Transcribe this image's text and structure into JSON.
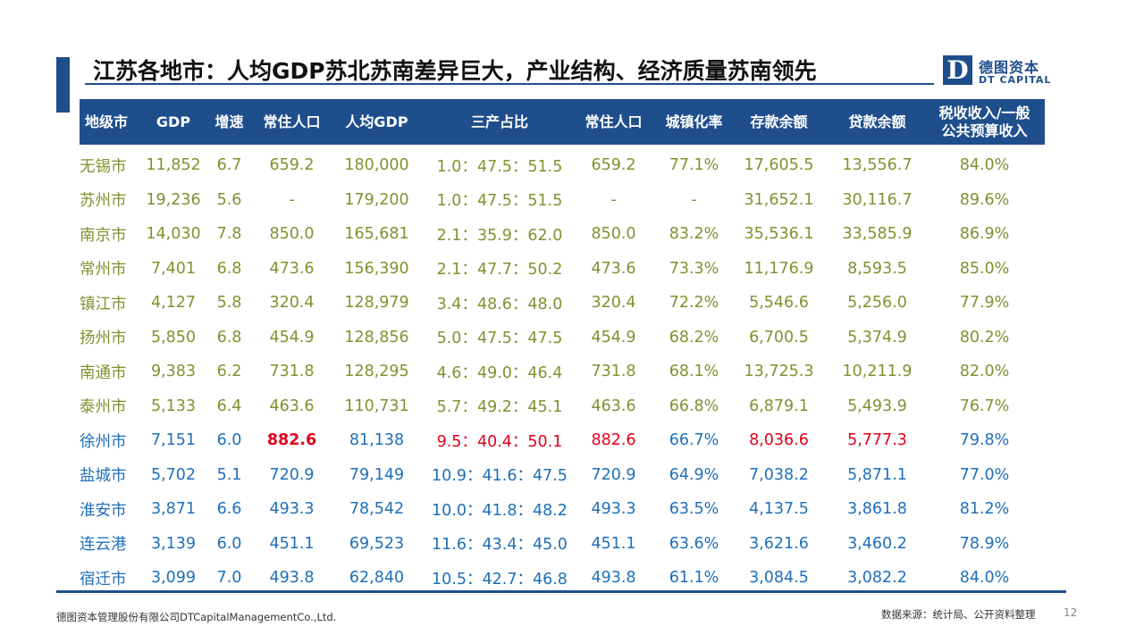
{
  "title": "江苏各地市：人均GDP苏北苏南差异巨大，产业结构、经济质量苏南领先",
  "logo": {
    "mark": "D",
    "cn": "德图资本",
    "en": "DT CAPITAL"
  },
  "headers": [
    "地级市",
    "GDP",
    "增速",
    "常住人口",
    "人均GDP",
    "三产占比",
    "常住人口",
    "城镇化率",
    "存款余额",
    "贷款余额",
    "税收收入/一般\n公共预算收入"
  ],
  "rows": [
    {
      "name": "无锡市",
      "gdp": "11,852",
      "growth": "6.7",
      "pop": "659.2",
      "gdp_pc": "180,000",
      "ratio": "1.0：47.5：51.5",
      "pop2": "659.2",
      "urban": "77.1%",
      "deposit": "17,605.5",
      "loan": "13,556.7",
      "tax": "84.0%",
      "group": "south"
    },
    {
      "name": "苏州市",
      "gdp": "19,236",
      "growth": "5.6",
      "pop": "-",
      "gdp_pc": "179,200",
      "ratio": "1.0：47.5：51.5",
      "pop2": "-",
      "urban": "-",
      "deposit": "31,652.1",
      "loan": "30,116.7",
      "tax": "89.6%",
      "group": "south"
    },
    {
      "name": "南京市",
      "gdp": "14,030",
      "growth": "7.8",
      "pop": "850.0",
      "gdp_pc": "165,681",
      "ratio": "2.1：35.9：62.0",
      "pop2": "850.0",
      "urban": "83.2%",
      "deposit": "35,536.1",
      "loan": "33,585.9",
      "tax": "86.9%",
      "group": "south"
    },
    {
      "name": "常州市",
      "gdp": "7,401",
      "growth": "6.8",
      "pop": "473.6",
      "gdp_pc": "156,390",
      "ratio": "2.1：47.7：50.2",
      "pop2": "473.6",
      "urban": "73.3%",
      "deposit": "11,176.9",
      "loan": "8,593.5",
      "tax": "85.0%",
      "group": "south"
    },
    {
      "name": "镇江市",
      "gdp": "4,127",
      "growth": "5.8",
      "pop": "320.4",
      "gdp_pc": "128,979",
      "ratio": "3.4：48.6：48.0",
      "pop2": "320.4",
      "urban": "72.2%",
      "deposit": "5,546.6",
      "loan": "5,256.0",
      "tax": "77.9%",
      "group": "south"
    },
    {
      "name": "扬州市",
      "gdp": "5,850",
      "growth": "6.8",
      "pop": "454.9",
      "gdp_pc": "128,856",
      "ratio": "5.0：47.5：47.5",
      "pop2": "454.9",
      "urban": "68.2%",
      "deposit": "6,700.5",
      "loan": "5,374.9",
      "tax": "80.2%",
      "group": "south"
    },
    {
      "name": "南通市",
      "gdp": "9,383",
      "growth": "6.2",
      "pop": "731.8",
      "gdp_pc": "128,295",
      "ratio": "4.6：49.0：46.4",
      "pop2": "731.8",
      "urban": "68.1%",
      "deposit": "13,725.3",
      "loan": "10,211.9",
      "tax": "82.0%",
      "group": "south"
    },
    {
      "name": "泰州市",
      "gdp": "5,133",
      "growth": "6.4",
      "pop": "463.6",
      "gdp_pc": "110,731",
      "ratio": "5.7：49.2：45.1",
      "pop2": "463.6",
      "urban": "66.8%",
      "deposit": "6,879.1",
      "loan": "5,493.9",
      "tax": "76.7%",
      "group": "south"
    },
    {
      "name": "徐州市",
      "gdp": "7,151",
      "growth": "6.0",
      "pop": "882.6",
      "gdp_pc": "81,138",
      "ratio": "9.5：40.4：50.1",
      "pop2": "882.6",
      "urban": "66.7%",
      "deposit": "8,036.6",
      "loan": "5,777.3",
      "tax": "79.8%",
      "group": "north",
      "highlight": [
        "pop",
        "ratio",
        "pop2",
        "deposit",
        "loan"
      ]
    },
    {
      "name": "盐城市",
      "gdp": "5,702",
      "growth": "5.1",
      "pop": "720.9",
      "gdp_pc": "79,149",
      "ratio": "10.9：41.6：47.5",
      "pop2": "720.9",
      "urban": "64.9%",
      "deposit": "7,038.2",
      "loan": "5,871.1",
      "tax": "77.0%",
      "group": "north"
    },
    {
      "name": "淮安市",
      "gdp": "3,871",
      "growth": "6.6",
      "pop": "493.3",
      "gdp_pc": "78,542",
      "ratio": "10.0：41.8：48.2",
      "pop2": "493.3",
      "urban": "63.5%",
      "deposit": "4,137.5",
      "loan": "3,861.8",
      "tax": "81.2%",
      "group": "north"
    },
    {
      "name": "连云港",
      "gdp": "3,139",
      "growth": "6.0",
      "pop": "451.1",
      "gdp_pc": "69,523",
      "ratio": "11.6：43.4：45.0",
      "pop2": "451.1",
      "urban": "63.6%",
      "deposit": "3,621.6",
      "loan": "3,460.2",
      "tax": "78.9%",
      "group": "north"
    },
    {
      "name": "宿迁市",
      "gdp": "3,099",
      "growth": "7.0",
      "pop": "493.8",
      "gdp_pc": "62,840",
      "ratio": "10.5：42.7：46.8",
      "pop2": "493.8",
      "urban": "61.1%",
      "deposit": "3,084.5",
      "loan": "3,082.2",
      "tax": "84.0%",
      "group": "north"
    }
  ],
  "colors": {
    "south": "#7f9230",
    "north": "#1f6fb8",
    "highlight": "#e0001b",
    "header_bg": "#1f4e8c"
  },
  "footer": {
    "company": "德图资本管理股份有限公司DTCapitalManagementCo.,Ltd.",
    "source": "数据来源：统计局、公开资料整理",
    "page": "12"
  }
}
